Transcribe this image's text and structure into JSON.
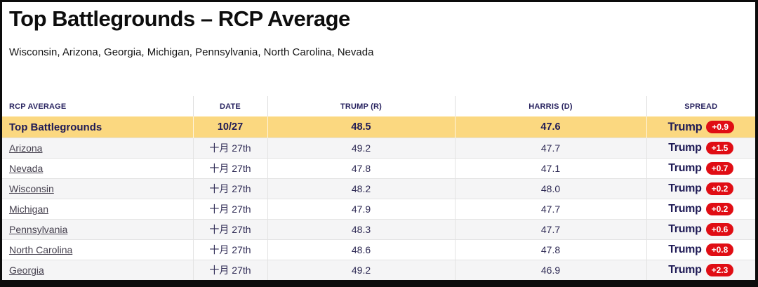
{
  "page": {
    "title": "Top Battlegrounds – RCP Average",
    "subtitle": "Wisconsin, Arizona, Georgia, Michigan, Pennsylvania, North Carolina, Nevada"
  },
  "table": {
    "columns": [
      "RCP AVERAGE",
      "DATE",
      "TRUMP (R)",
      "HARRIS (D)",
      "SPREAD"
    ],
    "summary_row": {
      "name": "Top Battlegrounds",
      "date": "10/27",
      "trump": "48.5",
      "harris": "47.6",
      "spread_winner": "Trump",
      "spread_margin": "+0.9"
    },
    "rows": [
      {
        "name": "Arizona",
        "date": "十月 27th",
        "trump": "49.2",
        "harris": "47.7",
        "spread_winner": "Trump",
        "spread_margin": "+1.5"
      },
      {
        "name": "Nevada",
        "date": "十月 27th",
        "trump": "47.8",
        "harris": "47.1",
        "spread_winner": "Trump",
        "spread_margin": "+0.7"
      },
      {
        "name": "Wisconsin",
        "date": "十月 27th",
        "trump": "48.2",
        "harris": "48.0",
        "spread_winner": "Trump",
        "spread_margin": "+0.2"
      },
      {
        "name": "Michigan",
        "date": "十月 27th",
        "trump": "47.9",
        "harris": "47.7",
        "spread_winner": "Trump",
        "spread_margin": "+0.2"
      },
      {
        "name": "Pennsylvania",
        "date": "十月 27th",
        "trump": "48.3",
        "harris": "47.7",
        "spread_winner": "Trump",
        "spread_margin": "+0.6"
      },
      {
        "name": "North Carolina",
        "date": "十月 27th",
        "trump": "48.6",
        "harris": "47.8",
        "spread_winner": "Trump",
        "spread_margin": "+0.8"
      },
      {
        "name": "Georgia",
        "date": "十月 27th",
        "trump": "49.2",
        "harris": "46.9",
        "spread_winner": "Trump",
        "spread_margin": "+2.3"
      }
    ]
  },
  "colors": {
    "highlight_yellow": "#fbd880",
    "badge_red": "#e00d14",
    "header_navy": "#27225f",
    "frame_black": "#0c0c0c"
  }
}
